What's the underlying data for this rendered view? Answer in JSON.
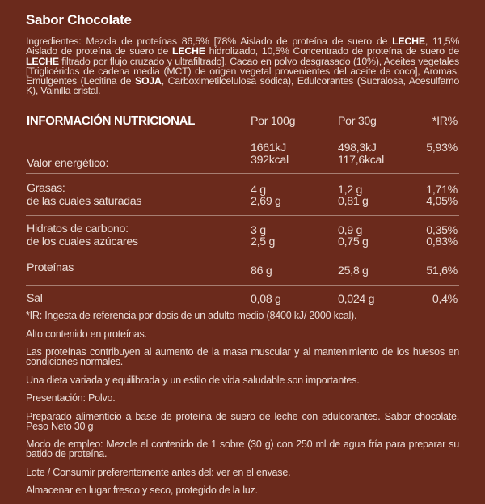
{
  "title": "Sabor Chocolate",
  "ingredients": {
    "p1": "Ingredientes: Mezcla de proteínas 86,5% [78% Aislado de proteína de suero de ",
    "a1": "LECHE",
    "p2": ", 11,5% Aislado de proteína de suero de ",
    "a2": "LECHE",
    "p3": " hidrolizado, 10,5% Concentrado de proteína de suero de ",
    "a3": "LECHE",
    "p4": " filtrado por flujo cruzado y ultrafiltrado], Cacao en polvo desgrasado (10%), Aceites vegetales [Triglicéridos de cadena media (MCT) de origen vegetal provenientes del aceite de coco], Aromas, Emulgentes (Lecitina de ",
    "a4": "SOJA",
    "p5": ", Carboximetilcelulosa sódica), Edulcorantes (Sucralosa, Acesulfamo K), Vainilla cristal."
  },
  "table": {
    "header": {
      "label": "INFORMACIÓN NUTRICIONAL",
      "p100": "Por 100g",
      "p30": "Por 30g",
      "ir": "*IR%"
    },
    "energy": {
      "label": "Valor energético:",
      "p100_kj": "1661kJ",
      "p100_kcal": "392kcal",
      "p30_kj": "498,3kJ",
      "p30_kcal": "117,6kcal",
      "ir": "5,93%"
    },
    "fat": {
      "label": "Grasas:",
      "p100": "4 g",
      "p30": "1,2 g",
      "ir": "1,71%",
      "sub_label": "de las cuales saturadas",
      "sub_p100": "2,69 g",
      "sub_p30": "0,81 g",
      "sub_ir": "4,05%"
    },
    "carbs": {
      "label": "Hidratos de carbono:",
      "p100": "3 g",
      "p30": "0,9 g",
      "ir": "0,35%",
      "sub_label": "de los cuales azúcares",
      "sub_p100": "2,5 g",
      "sub_p30": "0,75 g",
      "sub_ir": "0,83%"
    },
    "protein": {
      "label": "Proteínas",
      "p100": "86 g",
      "p30": "25,8 g",
      "ir": "51,6%"
    },
    "salt": {
      "label": "Sal",
      "p100": "0,08 g",
      "p30": "0,024 g",
      "ir": "0,4%"
    }
  },
  "notes": [
    "*IR: Ingesta de referencia por dosis de un adulto medio (8400 kJ/ 2000 kcal).",
    "Alto contenido en proteínas.",
    "Las proteínas contribuyen al aumento de la masa muscular y al mantenimiento de los huesos en condiciones normales.",
    "Una dieta variada y equilibrada y un estilo de vida saludable son importantes.",
    "Presentación: Polvo.",
    "Preparado alimenticio a base de proteína de suero de leche con edulcorantes. Sabor chocolate. Peso Neto 30 g",
    "Modo de empleo: Mezcle el contenido de 1 sobre (30 g) con 250 ml de agua fría para preparar su batido de proteína.",
    "Lote / Consumir preferentemente antes del: ver en el envase.",
    "Almacenar en lugar fresco y seco, protegido de la luz."
  ]
}
